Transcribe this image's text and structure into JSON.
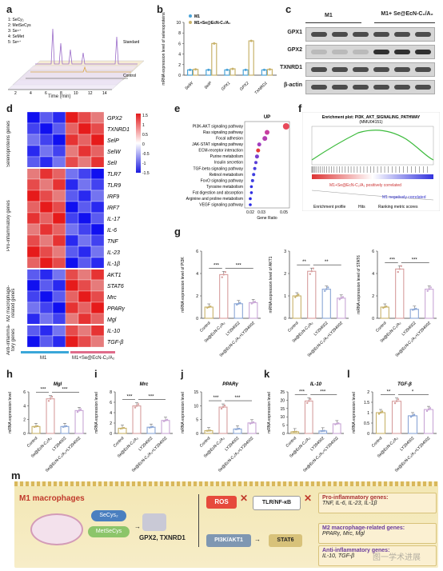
{
  "panels": {
    "a": {
      "label": "a",
      "xlabel": "Time (min)",
      "legend": [
        "1: SeCy₂",
        "2: MetSeCys",
        "3: Se⁴⁺",
        "4: SeMet",
        "5: Se⁶⁺"
      ],
      "std_label": "Standard",
      "ctrl_label": "Control",
      "xticks": [
        "2",
        "4",
        "6",
        "8",
        "10",
        "12",
        "14"
      ]
    },
    "b": {
      "label": "b",
      "ylabel": "mRNA expression level of selenoproteins",
      "legend": [
        "M1",
        "M1+Se@EcN-C₂/A₂"
      ],
      "colors": [
        "#4aa3d8",
        "#c8b26a"
      ]
    },
    "c": {
      "label": "c",
      "groups": [
        "M1",
        "M1+ Se@EcN-C₂/A₂"
      ],
      "rows": [
        "GPX1",
        "GPX2",
        "TXNRD1",
        "β-actin"
      ]
    },
    "d": {
      "label": "d",
      "groups": [
        "Selenoproteins genes",
        "Pro-inflammatory genes",
        "M2 macrophage-related genes",
        "Anti-inflamma-tory genes"
      ],
      "xlabels": [
        "M1",
        "M1+Se@EcN-C₂/A₂"
      ],
      "scale": [
        "1.5",
        "1",
        "0.5",
        "0",
        "-0.5",
        "-1",
        "-1.5"
      ]
    },
    "e": {
      "label": "e",
      "title": "UP",
      "xlabel": "Gene Ratio",
      "xticks": [
        "0.02",
        "0.03",
        "0.05"
      ],
      "pathways": [
        "PI3K-AKT signaling pathway",
        "Ras signaling pathway",
        "Focal adhesion",
        "JAK-STAT signaling pathway",
        "ECM-receptor interaction",
        "Purine metabolism",
        "Insulin secretion",
        "TGF-beta signaling pathway",
        "Retinol metabolism",
        "FoxO signaling pathway",
        "Tyrosine metabolism",
        "Fat digestion and absorption",
        "Arginine and proline metabolism",
        "VEGF signaling pathway"
      ]
    },
    "f": {
      "label": "f",
      "title": "Enrichment plot: PI3K_AKT_SIGNALING_PATHWAY",
      "subtitle": "(MMU04151)",
      "annot1": "M1+Se@EcN-C₂/A₂ positively correlated",
      "annot2": "M1 negatively correlated",
      "legend": [
        "Enrichment profile",
        "Hits",
        "Ranking metric scores"
      ]
    },
    "g": {
      "label": "g"
    },
    "h": {
      "label": "h"
    },
    "i": {
      "label": "i"
    },
    "j": {
      "label": "j"
    },
    "k": {
      "label": "k"
    },
    "l": {
      "label": "l"
    },
    "m": {
      "label": "m",
      "title": "M1 macrophages",
      "secys": "SeCys₂",
      "metsecys": "MetSeCys",
      "gpx": "GPX2, TXNRD1",
      "ros": "ROS",
      "tlr": "TLR/NF-κB",
      "pi3k": "PI3K/AKT1",
      "stat6": "STAT6",
      "pro": "Pro-inflammatory genes:",
      "pro_genes": "TNF, IL-6, IL-23, IL-1β",
      "m2": "M2 macrophage-related genes:",
      "m2_genes": "PPARγ, Mrc, Mgl",
      "anti": "Anti-inflammatory genes:",
      "anti_genes": "IL-10, TGF-β",
      "watermark": "图一学术进展"
    }
  },
  "heatmap_genes": [
    "GPX2",
    "TXNRD1",
    "SelP",
    "SelW",
    "SelI",
    "TLR7",
    "TLR9",
    "IRF9",
    "IRF7",
    "IL-17",
    "IL-6",
    "TNF",
    "IL-23",
    "IL-1β",
    "AKT1",
    "STAT6",
    "Mrc",
    "PPARγ",
    "Mgl",
    "IL-10",
    "TGF-β"
  ],
  "bar_common": {
    "ylabel": "mRNA expression level",
    "categories": [
      "Control",
      "Se@EcN-C₂/A₂",
      "LY294002",
      "Se@EcN-C₂/A₂+LY294002"
    ],
    "colors": [
      "#c8b26a",
      "#d79e9e",
      "#8aa6d6",
      "#c9a6d6"
    ]
  },
  "chart_data": [
    {
      "type": "bar",
      "panel": "b",
      "title": "",
      "ylabel": "mRNA expression level of selenoproteins",
      "categories": [
        "SelW",
        "SelP",
        "GPX1",
        "GPX2",
        "TXNRD1"
      ],
      "series": [
        {
          "name": "M1",
          "values": [
            1,
            1,
            1,
            1,
            1
          ]
        },
        {
          "name": "M1+Se@EcN-C₂/A₂",
          "values": [
            1.1,
            6,
            1.2,
            6.5,
            1.1
          ]
        }
      ],
      "ylim": [
        0,
        10
      ],
      "yticks": [
        0,
        2,
        4,
        6,
        8,
        10
      ]
    },
    {
      "type": "bar",
      "panel": "g",
      "title": "",
      "ylabel": "mRNA expression level of PI3K",
      "gene": "PI3K",
      "values": [
        1.0,
        3.9,
        1.3,
        1.4
      ],
      "ylim": [
        0,
        6
      ],
      "yticks": [
        0,
        2,
        4,
        6
      ],
      "sig": [
        "***",
        "***"
      ]
    },
    {
      "type": "bar",
      "panel": "g2",
      "title": "",
      "ylabel": "mRNA expression level of AKT1",
      "gene": "AKT1",
      "values": [
        1.0,
        2.1,
        1.3,
        0.9
      ],
      "ylim": [
        0,
        3
      ],
      "yticks": [
        0,
        1,
        2,
        3
      ],
      "sig": [
        "**",
        "**"
      ]
    },
    {
      "type": "bar",
      "panel": "g3",
      "title": "",
      "ylabel": "mRNA expression level of STAT6",
      "gene": "STAT6",
      "values": [
        1.0,
        4.4,
        0.8,
        2.6
      ],
      "ylim": [
        0,
        6
      ],
      "yticks": [
        0,
        2,
        4,
        6
      ],
      "sig": [
        "***",
        "***"
      ]
    },
    {
      "type": "bar",
      "panel": "h",
      "title": "Mgl",
      "values": [
        1.0,
        5.0,
        1.0,
        3.3
      ],
      "ylim": [
        0,
        6
      ],
      "yticks": [
        0,
        2,
        4,
        6
      ],
      "sig": [
        "***",
        "***"
      ]
    },
    {
      "type": "bar",
      "panel": "i",
      "title": "Mrc",
      "values": [
        1.0,
        5.3,
        1.2,
        2.5
      ],
      "ylim": [
        0,
        8
      ],
      "yticks": [
        0,
        2,
        4,
        6,
        8
      ],
      "sig": [
        "***",
        "***"
      ]
    },
    {
      "type": "bar",
      "panel": "j",
      "title": "PPARγ",
      "values": [
        1.0,
        9.5,
        1.6,
        3.8
      ],
      "ylim": [
        0,
        15
      ],
      "yticks": [
        0,
        5,
        10,
        15
      ],
      "sig": [
        "***",
        "***"
      ]
    },
    {
      "type": "bar",
      "panel": "k",
      "title": "IL-10",
      "values": [
        1.0,
        19.5,
        1.5,
        5.8
      ],
      "ylim": [
        0,
        25
      ],
      "yticks": [
        0,
        5,
        10,
        15,
        20,
        25
      ],
      "sig": [
        "***",
        "***"
      ]
    },
    {
      "type": "bar",
      "panel": "l",
      "title": "TGF-β",
      "values": [
        1.0,
        1.55,
        0.85,
        1.15
      ],
      "ylim": [
        0,
        2
      ],
      "yticks": [
        0,
        0.5,
        1.0,
        1.5,
        2.0
      ],
      "sig": [
        "**",
        "*"
      ]
    }
  ]
}
